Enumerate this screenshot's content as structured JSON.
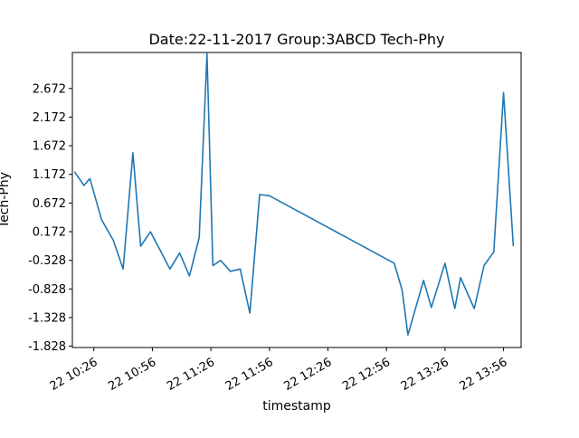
{
  "chart_data": {
    "type": "line",
    "title": "Date:22-11-2017 Group:3ABCD Tech-Phy",
    "xlabel": "timestamp",
    "ylabel": "Tech-Phy",
    "xlim": [
      "10:15",
      "14:05"
    ],
    "ylim": [
      -1.85,
      3.3
    ],
    "x_ticks": [
      "10:26",
      "10:56",
      "11:26",
      "11:56",
      "12:26",
      "12:56",
      "13:26",
      "13:56"
    ],
    "x_tick_labels": [
      "22 10:26",
      "22 10:56",
      "22 11:26",
      "22 11:56",
      "22 12:26",
      "22 12:56",
      "22 13:26",
      "22 13:56"
    ],
    "y_ticks": [
      -1.828,
      -1.328,
      -0.828,
      -0.328,
      0.172,
      0.672,
      1.172,
      1.672,
      2.172,
      2.672
    ],
    "y_tick_labels": [
      "-1.828",
      "-1.328",
      "-0.828",
      "-0.328",
      "0.172",
      "0.672",
      "1.172",
      "1.672",
      "2.172",
      "2.672"
    ],
    "grid": false,
    "series": [
      {
        "color": "#1f77b4",
        "x": [
          "10:16",
          "10:21",
          "10:24",
          "10:30",
          "10:36",
          "10:41",
          "10:46",
          "10:50",
          "10:55",
          "11:00",
          "11:05",
          "11:10",
          "11:15",
          "11:20",
          "11:24",
          "11:27",
          "11:31",
          "11:36",
          "11:41",
          "11:46",
          "11:51",
          "11:56",
          "13:00",
          "13:04",
          "13:07",
          "13:15",
          "13:19",
          "13:26",
          "13:31",
          "13:34",
          "13:41",
          "13:46",
          "13:51",
          "13:56",
          "14:01"
        ],
        "y": [
          1.22,
          0.98,
          1.1,
          0.38,
          0.02,
          -0.48,
          1.55,
          -0.08,
          0.17,
          -0.15,
          -0.48,
          -0.2,
          -0.6,
          0.07,
          3.28,
          -0.42,
          -0.33,
          -0.52,
          -0.48,
          -1.25,
          0.82,
          0.8,
          -0.38,
          -0.85,
          -1.63,
          -0.68,
          -1.15,
          -0.38,
          -1.17,
          -0.63,
          -1.17,
          -0.42,
          -0.18,
          2.6,
          -0.08
        ]
      }
    ]
  }
}
